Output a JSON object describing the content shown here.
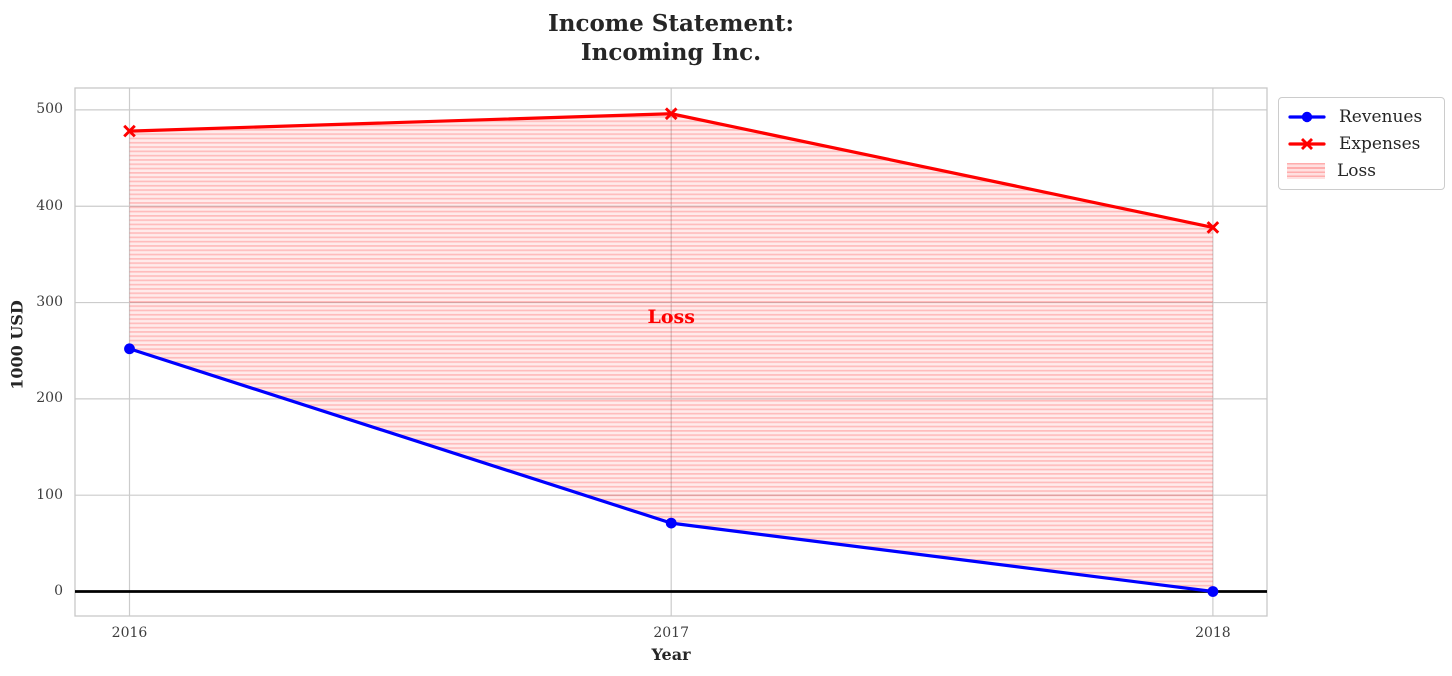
{
  "chart_data": {
    "type": "line",
    "title": "Income Statement:\nIncoming Inc.",
    "title_lines": [
      "Income Statement:",
      "Incoming Inc."
    ],
    "xlabel": "Year",
    "ylabel": "1000 USD",
    "x": [
      2016,
      2017,
      2018
    ],
    "xtick_labels": [
      "2016",
      "2017",
      "2018"
    ],
    "yticks": [
      0,
      100,
      200,
      300,
      400,
      500
    ],
    "xlim": [
      2015.9,
      2018.1
    ],
    "ylim": [
      -25.5,
      522.5
    ],
    "grid": true,
    "series": [
      {
        "name": "Revenues",
        "color": "#0000ff",
        "marker": "circle",
        "values": [
          252,
          71,
          0
        ]
      },
      {
        "name": "Expenses",
        "color": "#ff0000",
        "marker": "x",
        "values": [
          478,
          496,
          378
        ]
      }
    ],
    "fill_between": {
      "label": "Loss",
      "between": [
        "Expenses",
        "Revenues"
      ],
      "color": "#ff0000",
      "hatch": "horizontal-lines",
      "base_alpha": 0.08,
      "hatch_alpha": 0.2
    },
    "annotation": {
      "text": "Loss",
      "x": 2017,
      "y": 285,
      "color": "#ff0000"
    },
    "zero_line": {
      "show": true,
      "color": "#000000"
    },
    "grid_color": "#cccccc",
    "legend": {
      "position": "outside-top-right",
      "entries": [
        "Revenues",
        "Expenses",
        "Loss"
      ]
    }
  }
}
